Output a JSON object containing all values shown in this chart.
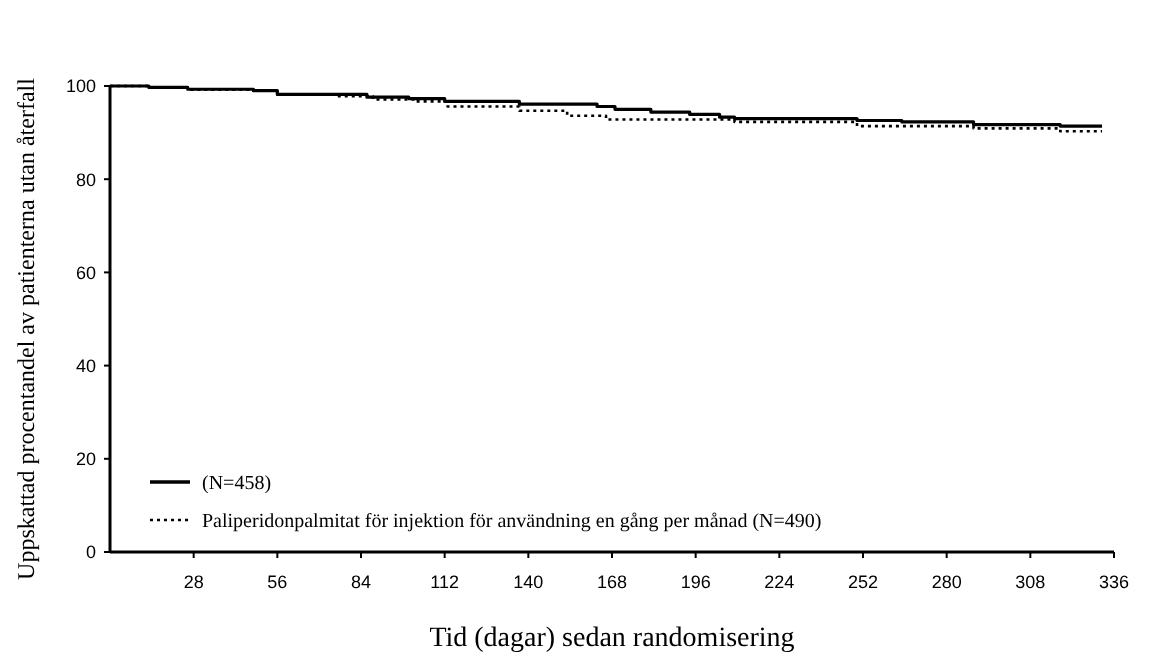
{
  "chart_data": {
    "type": "step",
    "xlabel": "Tid (dagar) sedan randomisering",
    "ylabel": "Uppskattad procentandel av patienterna utan återfall",
    "xlim": [
      0,
      336
    ],
    "ylim": [
      0,
      100
    ],
    "xticks": [
      28,
      56,
      84,
      112,
      140,
      168,
      196,
      224,
      252,
      280,
      308,
      336
    ],
    "yticks": [
      0,
      20,
      40,
      60,
      80,
      100
    ],
    "grid": false,
    "legend": "bottom left",
    "series": [
      {
        "name": "(N=458)",
        "color": "#000000",
        "line_style": "solid",
        "x": [
          0,
          13,
          26,
          48,
          56,
          86,
          100,
          112,
          137,
          163,
          169,
          181,
          194,
          204,
          209,
          250,
          265,
          289,
          318,
          332
        ],
        "values": [
          100,
          99.7,
          99.3,
          99,
          98.2,
          97.6,
          97.3,
          96.7,
          96.1,
          95.6,
          95,
          94.4,
          93.9,
          93.3,
          93,
          92.6,
          92.3,
          91.7,
          91.4,
          91.4
        ]
      },
      {
        "name": "Paliperidonpalmitat för injektion för användning en gång per månad (N=490)",
        "color": "#000000",
        "line_style": "dotted",
        "x": [
          0,
          13,
          26,
          48,
          56,
          75,
          88,
          102,
          113,
          137,
          153,
          166,
          209,
          250,
          289,
          318,
          332
        ],
        "values": [
          100,
          99.7,
          99.2,
          99,
          98.2,
          97.8,
          97.1,
          96.7,
          95.6,
          94.7,
          93.6,
          92.8,
          92.3,
          91.4,
          90.9,
          90.3,
          90.3
        ]
      }
    ]
  }
}
